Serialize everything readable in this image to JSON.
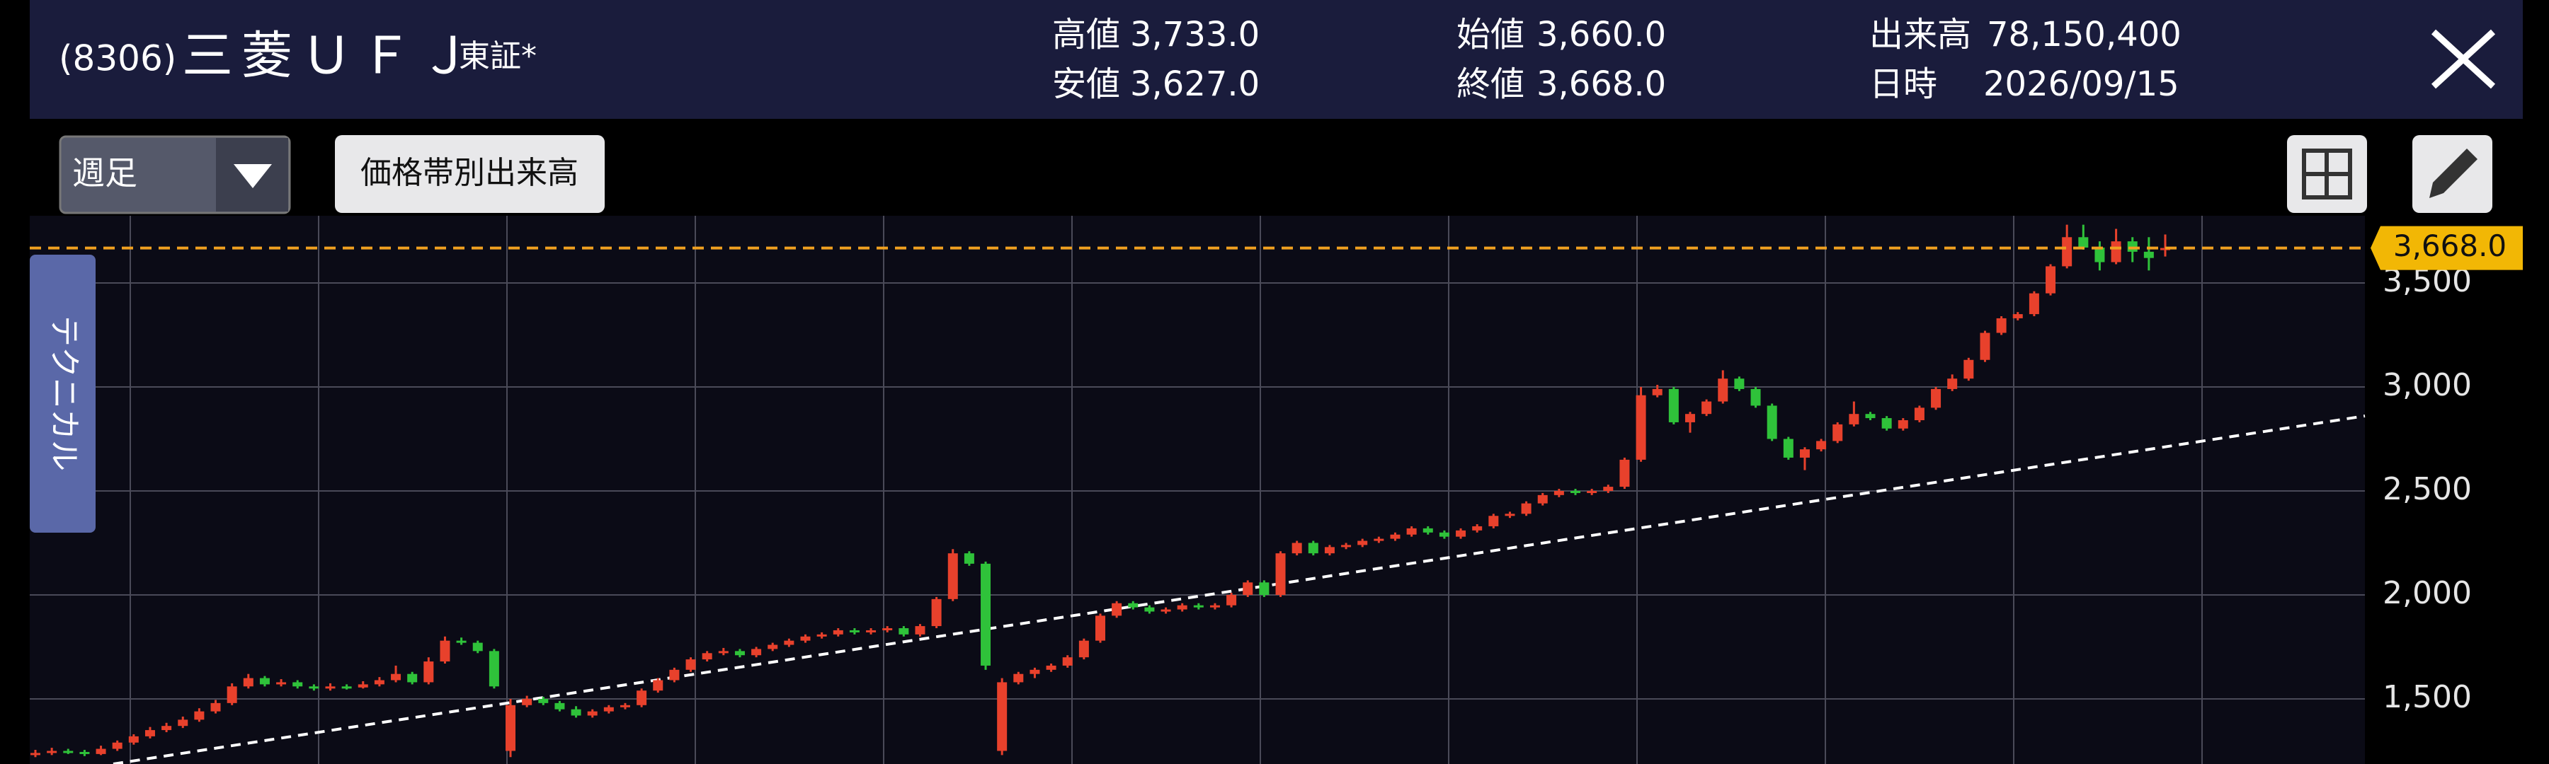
{
  "header": {
    "code": "(8306)",
    "name": "三菱ＵＦＪ",
    "market": "東証*",
    "stats": [
      {
        "label": "高値",
        "value": "3,733.0"
      },
      {
        "label": "安値",
        "value": "3,627.0"
      },
      {
        "label": "始値",
        "value": "3,660.0"
      },
      {
        "label": "終値",
        "value": "3,668.0"
      },
      {
        "label": "出来高",
        "value": "78,150,400"
      },
      {
        "label": "日時",
        "value": "2026/09/15"
      }
    ]
  },
  "toolbar": {
    "period": "週足",
    "volume_button": "価格帯別出来高"
  },
  "side_tab": "テクニカル",
  "chart_data": {
    "type": "candlestick",
    "up_color": "#e8412c",
    "down_color": "#2fc23a",
    "ylim": [
      1187,
      3823
    ],
    "yticks": [
      {
        "value": 1500,
        "label": "1,500"
      },
      {
        "value": 2000,
        "label": "2,000"
      },
      {
        "value": 2500,
        "label": "2,500"
      },
      {
        "value": 3000,
        "label": "3,000"
      },
      {
        "value": 3500,
        "label": "3,500"
      }
    ],
    "grid": true,
    "current_price": 3668,
    "current_price_label": "3,668.0",
    "current_price_color": "#f0a020",
    "ohlc": [
      [
        1230,
        1255,
        1220,
        1240
      ],
      [
        1240,
        1265,
        1230,
        1250
      ],
      [
        1250,
        1260,
        1235,
        1245
      ],
      [
        1245,
        1255,
        1225,
        1235
      ],
      [
        1235,
        1275,
        1230,
        1260
      ],
      [
        1260,
        1300,
        1250,
        1290
      ],
      [
        1290,
        1330,
        1280,
        1320
      ],
      [
        1320,
        1365,
        1310,
        1350
      ],
      [
        1350,
        1385,
        1340,
        1370
      ],
      [
        1370,
        1415,
        1360,
        1400
      ],
      [
        1400,
        1455,
        1390,
        1440
      ],
      [
        1440,
        1495,
        1430,
        1480
      ],
      [
        1480,
        1575,
        1470,
        1560
      ],
      [
        1560,
        1620,
        1550,
        1600
      ],
      [
        1600,
        1610,
        1560,
        1570
      ],
      [
        1570,
        1595,
        1560,
        1580
      ],
      [
        1580,
        1590,
        1550,
        1560
      ],
      [
        1560,
        1570,
        1540,
        1550
      ],
      [
        1550,
        1575,
        1540,
        1560
      ],
      [
        1560,
        1570,
        1545,
        1555
      ],
      [
        1555,
        1585,
        1550,
        1570
      ],
      [
        1570,
        1605,
        1560,
        1590
      ],
      [
        1590,
        1660,
        1580,
        1620
      ],
      [
        1620,
        1630,
        1570,
        1580
      ],
      [
        1580,
        1700,
        1570,
        1680
      ],
      [
        1680,
        1800,
        1670,
        1780
      ],
      [
        1780,
        1795,
        1760,
        1770
      ],
      [
        1770,
        1780,
        1720,
        1730
      ],
      [
        1730,
        1740,
        1550,
        1560
      ],
      [
        1250,
        1500,
        1220,
        1470
      ],
      [
        1470,
        1515,
        1460,
        1500
      ],
      [
        1500,
        1510,
        1470,
        1480
      ],
      [
        1480,
        1490,
        1440,
        1450
      ],
      [
        1450,
        1465,
        1410,
        1420
      ],
      [
        1420,
        1450,
        1410,
        1440
      ],
      [
        1440,
        1470,
        1430,
        1460
      ],
      [
        1460,
        1480,
        1450,
        1470
      ],
      [
        1470,
        1550,
        1460,
        1540
      ],
      [
        1540,
        1600,
        1530,
        1590
      ],
      [
        1590,
        1650,
        1580,
        1640
      ],
      [
        1640,
        1700,
        1630,
        1690
      ],
      [
        1690,
        1730,
        1680,
        1720
      ],
      [
        1720,
        1745,
        1710,
        1730
      ],
      [
        1730,
        1740,
        1700,
        1710
      ],
      [
        1710,
        1750,
        1700,
        1740
      ],
      [
        1740,
        1770,
        1730,
        1760
      ],
      [
        1760,
        1790,
        1750,
        1780
      ],
      [
        1780,
        1810,
        1770,
        1800
      ],
      [
        1800,
        1820,
        1790,
        1810
      ],
      [
        1810,
        1840,
        1800,
        1830
      ],
      [
        1830,
        1840,
        1810,
        1820
      ],
      [
        1820,
        1840,
        1810,
        1830
      ],
      [
        1830,
        1850,
        1820,
        1840
      ],
      [
        1840,
        1850,
        1800,
        1810
      ],
      [
        1810,
        1860,
        1800,
        1850
      ],
      [
        1850,
        1990,
        1840,
        1980
      ],
      [
        1980,
        2220,
        1970,
        2200
      ],
      [
        2200,
        2210,
        2140,
        2150
      ],
      [
        2150,
        2160,
        1640,
        1660
      ],
      [
        1250,
        1600,
        1230,
        1580
      ],
      [
        1580,
        1630,
        1570,
        1620
      ],
      [
        1620,
        1650,
        1600,
        1640
      ],
      [
        1640,
        1670,
        1630,
        1660
      ],
      [
        1660,
        1710,
        1650,
        1700
      ],
      [
        1700,
        1790,
        1690,
        1780
      ],
      [
        1780,
        1910,
        1770,
        1900
      ],
      [
        1900,
        1970,
        1890,
        1960
      ],
      [
        1960,
        1970,
        1930,
        1940
      ],
      [
        1940,
        1950,
        1910,
        1920
      ],
      [
        1920,
        1940,
        1910,
        1930
      ],
      [
        1930,
        1960,
        1920,
        1950
      ],
      [
        1950,
        1960,
        1930,
        1940
      ],
      [
        1940,
        1960,
        1930,
        1950
      ],
      [
        1950,
        2010,
        1940,
        2000
      ],
      [
        2000,
        2070,
        1990,
        2060
      ],
      [
        2060,
        2070,
        1990,
        2000
      ],
      [
        2000,
        2210,
        1990,
        2200
      ],
      [
        2200,
        2260,
        2190,
        2250
      ],
      [
        2250,
        2260,
        2190,
        2200
      ],
      [
        2200,
        2240,
        2190,
        2230
      ],
      [
        2230,
        2250,
        2220,
        2240
      ],
      [
        2240,
        2270,
        2230,
        2260
      ],
      [
        2260,
        2280,
        2250,
        2270
      ],
      [
        2270,
        2300,
        2260,
        2290
      ],
      [
        2290,
        2330,
        2280,
        2320
      ],
      [
        2320,
        2330,
        2290,
        2300
      ],
      [
        2300,
        2310,
        2270,
        2280
      ],
      [
        2280,
        2320,
        2270,
        2310
      ],
      [
        2310,
        2340,
        2300,
        2330
      ],
      [
        2330,
        2390,
        2320,
        2380
      ],
      [
        2380,
        2400,
        2370,
        2390
      ],
      [
        2390,
        2450,
        2380,
        2440
      ],
      [
        2440,
        2490,
        2430,
        2480
      ],
      [
        2480,
        2510,
        2470,
        2500
      ],
      [
        2500,
        2510,
        2480,
        2490
      ],
      [
        2490,
        2510,
        2480,
        2500
      ],
      [
        2500,
        2530,
        2490,
        2520
      ],
      [
        2520,
        2660,
        2510,
        2650
      ],
      [
        2650,
        3000,
        2640,
        2960
      ],
      [
        2960,
        3010,
        2950,
        2990
      ],
      [
        2990,
        3000,
        2820,
        2830
      ],
      [
        2830,
        2880,
        2780,
        2870
      ],
      [
        2870,
        2940,
        2860,
        2930
      ],
      [
        2930,
        3080,
        2920,
        3040
      ],
      [
        3040,
        3050,
        2980,
        2990
      ],
      [
        2990,
        3000,
        2900,
        2910
      ],
      [
        2910,
        2920,
        2740,
        2750
      ],
      [
        2750,
        2760,
        2650,
        2660
      ],
      [
        2660,
        2710,
        2600,
        2700
      ],
      [
        2700,
        2750,
        2690,
        2740
      ],
      [
        2740,
        2830,
        2730,
        2820
      ],
      [
        2820,
        2930,
        2810,
        2870
      ],
      [
        2870,
        2880,
        2840,
        2850
      ],
      [
        2850,
        2860,
        2790,
        2800
      ],
      [
        2800,
        2850,
        2790,
        2840
      ],
      [
        2840,
        2910,
        2830,
        2900
      ],
      [
        2900,
        3000,
        2890,
        2990
      ],
      [
        2990,
        3060,
        2980,
        3040
      ],
      [
        3040,
        3140,
        3030,
        3130
      ],
      [
        3130,
        3270,
        3120,
        3260
      ],
      [
        3260,
        3340,
        3250,
        3330
      ],
      [
        3330,
        3360,
        3320,
        3350
      ],
      [
        3350,
        3460,
        3340,
        3450
      ],
      [
        3450,
        3590,
        3440,
        3580
      ],
      [
        3580,
        3780,
        3570,
        3720
      ],
      [
        3720,
        3780,
        3660,
        3670
      ],
      [
        3670,
        3700,
        3560,
        3600
      ],
      [
        3600,
        3760,
        3590,
        3700
      ],
      [
        3700,
        3720,
        3600,
        3650
      ],
      [
        3650,
        3720,
        3560,
        3620
      ],
      [
        3660,
        3733,
        3627,
        3668
      ]
    ]
  }
}
